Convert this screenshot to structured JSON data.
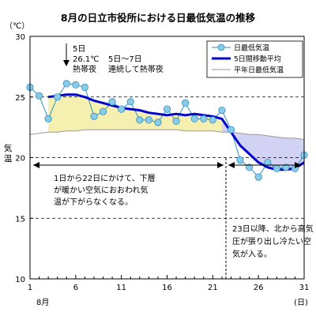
{
  "chart_data": {
    "type": "line",
    "title": "8月の日立市役所における日最低気温の推移",
    "yunit": "（℃）",
    "ylabel": "気温",
    "ylim": [
      10,
      30
    ],
    "yticks": [
      "10",
      "15",
      "20",
      "25",
      "30"
    ],
    "xlim": [
      1,
      31
    ],
    "xticks": [
      "1",
      "6",
      "11",
      "16",
      "21",
      "26",
      "31"
    ],
    "xunit": "(日)",
    "xlabel_month": "8月",
    "x": [
      1,
      2,
      3,
      4,
      5,
      6,
      7,
      8,
      9,
      10,
      11,
      12,
      13,
      14,
      15,
      16,
      17,
      18,
      19,
      20,
      21,
      22,
      23,
      24,
      25,
      26,
      27,
      28,
      29,
      30,
      31
    ],
    "series": [
      {
        "name": "日最低気温",
        "color": "#8ccbe8",
        "values": [
          25.8,
          25.1,
          23.2,
          25.0,
          26.1,
          26.0,
          25.8,
          23.4,
          23.8,
          24.6,
          24.0,
          24.6,
          23.1,
          23.1,
          22.9,
          24.0,
          23.0,
          24.5,
          23.2,
          23.2,
          23.1,
          23.9,
          22.3,
          19.8,
          19.2,
          18.4,
          19.6,
          19.1,
          19.2,
          19.1,
          20.2
        ]
      },
      {
        "name": "5日間移動平均",
        "color": "#0000cc",
        "values": [
          null,
          null,
          25.0,
          25.1,
          25.2,
          25.2,
          25.0,
          24.7,
          24.5,
          24.3,
          24.1,
          24.0,
          23.9,
          23.7,
          23.6,
          23.5,
          23.6,
          23.5,
          23.6,
          23.5,
          23.4,
          23.2,
          22.1,
          21.0,
          20.3,
          19.6,
          19.2,
          19.0,
          19.0,
          19.1,
          19.6
        ]
      },
      {
        "name": "平年日最低気温",
        "color": "#9a9a9a",
        "values": [
          21.9,
          22.0,
          22.1,
          22.1,
          22.2,
          22.2,
          22.3,
          22.3,
          22.3,
          22.3,
          22.3,
          22.3,
          22.3,
          22.3,
          22.3,
          22.3,
          22.3,
          22.2,
          22.2,
          22.2,
          22.2,
          22.1,
          22.1,
          22.0,
          21.9,
          21.9,
          21.8,
          21.7,
          21.6,
          21.6,
          21.5
        ]
      }
    ],
    "annotations": {
      "a1_line1": "5日",
      "a1_line2": "26.1℃",
      "a1_line3": "熱帯夜",
      "a2_line1": "5日～7日",
      "a2_line2": "連続して熱帯夜",
      "b1_line1": "1日から22日にかけて、下層",
      "b1_line2": "が暖かい空気におおわれ気",
      "b1_line3": "温が下がらなくなる。",
      "b2_line1": "23日以降、北から高気",
      "b2_line2": "圧が張り出し冷たい空",
      "b2_line3": "気が入る。"
    },
    "colors": {
      "warm_fill": "#f5f0b0",
      "cool_fill": "#d2d2f4",
      "marker_fill": "#8ccbe8",
      "marker_stroke": "#2f8fc0",
      "marker_line": "#2f8fc0"
    },
    "grid": "dashed horizontal at 15, 20, 25",
    "legend_position": "top-right"
  }
}
